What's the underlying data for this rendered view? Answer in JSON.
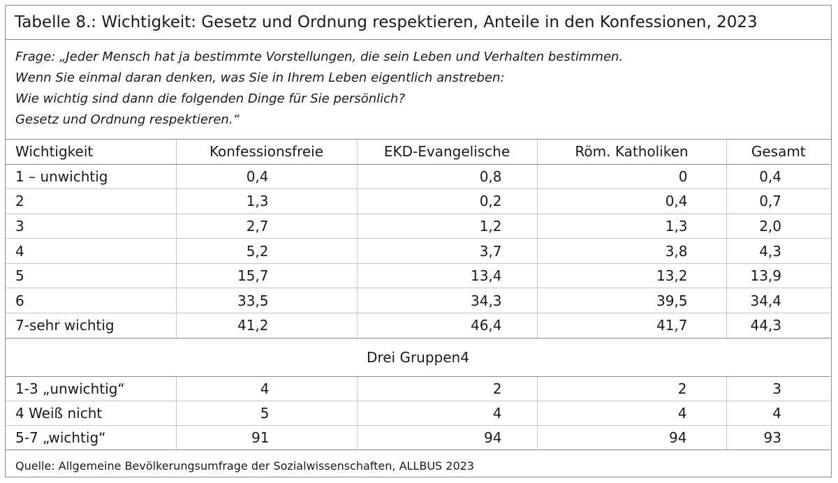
{
  "title": "Tabelle 8.: Wichtigkeit: Gesetz und Ordnung respektieren, Anteile in den Konfessionen, 2023",
  "question_lines": [
    "Frage: „Jeder Mensch hat ja bestimmte Vorstellungen, die sein Leben und Verhalten bestimmen.",
    "Wenn Sie einmal daran denken, was Sie in Ihrem Leben eigentlich anstreben:",
    "Wie wichtig sind dann die folgenden Dinge für Sie persönlich?",
    "Gesetz und Ordnung respektieren.“"
  ],
  "columns": [
    "Wichtigkeit",
    "Konfessionsfreie",
    "EKD-Evangelische",
    "Röm. Katholiken",
    "Gesamt"
  ],
  "rows": [
    [
      "1 – unwichtig",
      "0,4",
      "0,8",
      "0",
      "0,4"
    ],
    [
      "2",
      "1,3",
      "0,2",
      "0,4",
      "0,7"
    ],
    [
      "3",
      "2,7",
      "1,2",
      "1,3",
      "2,0"
    ],
    [
      "4",
      "5,2",
      "3,7",
      "3,8",
      "4,3"
    ],
    [
      "5",
      "15,7",
      "13,4",
      "13,2",
      "13,9"
    ],
    [
      "6",
      "33,5",
      "34,3",
      "39,5",
      "34,4"
    ],
    [
      "7-sehr wichtig",
      "41,2",
      "46,4",
      "41,7",
      "44,3"
    ]
  ],
  "group_heading": "Drei Gruppen4",
  "group_rows": [
    [
      "1-3 „unwichtig“",
      "4",
      "2",
      "2",
      "3"
    ],
    [
      "4 Weiß nicht",
      "5",
      "4",
      "4",
      "4"
    ],
    [
      "5-7 „wichtig“",
      "91",
      "94",
      "94",
      "93"
    ]
  ],
  "source": "Quelle: Allgemeine Bevölkerungsumfrage der Sozialwissenschaften, ALLBUS 2023"
}
